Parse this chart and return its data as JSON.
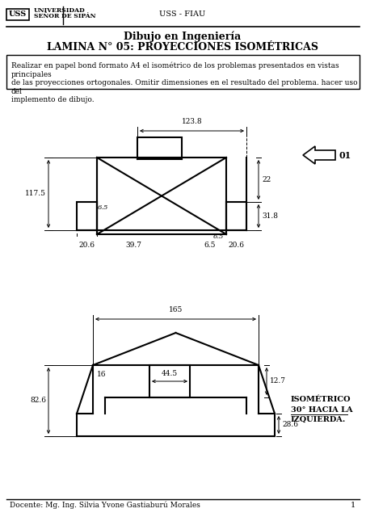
{
  "title1": "Dibujo en Ingeniería",
  "title2": "LAMINA N° 05: PROYECCIONES ISOMÉTRICAS",
  "university": "UNIVERSIDAD\nSEÑOR DE SIPÁN",
  "header_right": "USS - FIAU",
  "instruction": "Realizar en papel bond formato A4 el isométrico de los problemas presentados en vistas principales\nde las proyecciones ortogonales. Omitir dimensiones en el resultado del problema. hacer uso del\nimplemento de dibujo.",
  "footer": "Docente: Mg. Ing. Silvia Yvone Gastiaburú Morales",
  "page_num": "1",
  "bg_color": "#ffffff",
  "line_color": "#000000"
}
